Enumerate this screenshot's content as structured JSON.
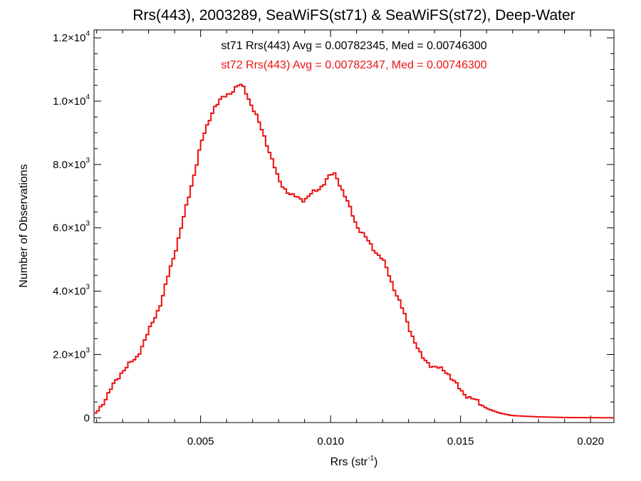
{
  "chart_data": {
    "type": "histogram",
    "title": "Rrs(443), 2003289, SeaWiFS(st71) & SeaWiFS(st72), Deep-Water",
    "xlabel_main": "Rrs (str",
    "xlabel_sup": "-1",
    "xlabel_close": ")",
    "ylabel": "Number of Observations",
    "xlim": [
      0.0009,
      0.0209
    ],
    "ylim": [
      -150,
      12250
    ],
    "x_ticks": [
      {
        "value": 0.005,
        "label": "0.005"
      },
      {
        "value": 0.01,
        "label": "0.010"
      },
      {
        "value": 0.015,
        "label": "0.015"
      },
      {
        "value": 0.02,
        "label": "0.020"
      }
    ],
    "y_ticks": [
      {
        "value": 0,
        "label": "0",
        "sup": ""
      },
      {
        "value": 2000,
        "label": "2.0×10",
        "sup": "3"
      },
      {
        "value": 4000,
        "label": "4.0×10",
        "sup": "3"
      },
      {
        "value": 6000,
        "label": "6.0×10",
        "sup": "3"
      },
      {
        "value": 8000,
        "label": "8.0×10",
        "sup": "3"
      },
      {
        "value": 10000,
        "label": "1.0×10",
        "sup": "4"
      },
      {
        "value": 12000,
        "label": "1.2×10",
        "sup": "4"
      }
    ],
    "annotations": [
      {
        "text": "st71 Rrs(443) Avg = 0.00782345, Med = 0.00746300",
        "color": "#000000"
      },
      {
        "text": "st72 Rrs(443) Avg = 0.00782347, Med = 0.00746300",
        "color": "#ee1111"
      }
    ],
    "series": [
      {
        "name": "st71",
        "color": "#000000"
      },
      {
        "name": "st72",
        "color": "#ee1111"
      }
    ],
    "bin_width": 0.0001,
    "x": [
      0.001,
      0.002,
      0.0025,
      0.003,
      0.0035,
      0.004,
      0.0045,
      0.005,
      0.0055,
      0.006,
      0.0065,
      0.0067,
      0.007,
      0.0075,
      0.008,
      0.0085,
      0.009,
      0.0095,
      0.01,
      0.0102,
      0.0105,
      0.011,
      0.0115,
      0.012,
      0.0125,
      0.013,
      0.0135,
      0.014,
      0.0145,
      0.015,
      0.016,
      0.0165,
      0.017,
      0.018,
      0.019,
      0.02,
      0.0209
    ],
    "y": [
      150,
      1500,
      1850,
      2700,
      3700,
      5200,
      6800,
      8600,
      9800,
      10200,
      10500,
      10400,
      9800,
      8800,
      7500,
      7000,
      6900,
      7200,
      7650,
      7700,
      7100,
      6100,
      5500,
      5000,
      4000,
      2900,
      1900,
      1600,
      1450,
      850,
      300,
      150,
      70,
      30,
      10,
      5,
      0
    ]
  }
}
